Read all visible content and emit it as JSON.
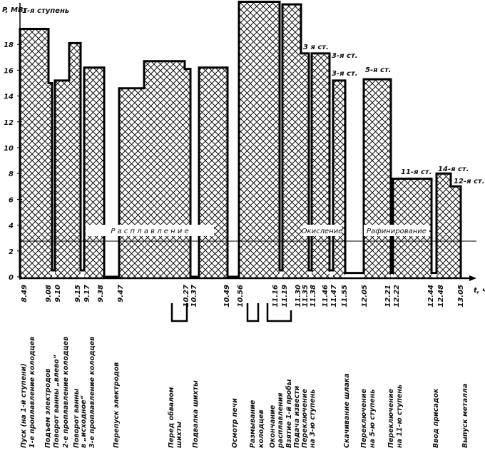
{
  "chart_data": {
    "type": "area",
    "title": "",
    "ylabel": "P, МВт",
    "xlabel": "t, ч",
    "ylim": [
      0,
      21.5
    ],
    "yticks": [
      "0",
      "2",
      "4",
      "6",
      "8",
      "10",
      "12",
      "14",
      "16",
      "18"
    ],
    "grid": false,
    "reference_line_mw": 2.8,
    "segments": [
      {
        "from": "8.49",
        "to": "9.08",
        "power": 19.2
      },
      {
        "from": "9.08",
        "to": "9.09",
        "power": 15.0
      },
      {
        "from": "9.09",
        "to": "9.10",
        "power": 0.5
      },
      {
        "from": "9.10",
        "to": "9.15",
        "power": 15.2
      },
      {
        "from": "9.15",
        "to": "9.17",
        "power": 18.1
      },
      {
        "from": "9.17",
        "to": "9.18",
        "power": 0.5
      },
      {
        "from": "9.18",
        "to": "9.38",
        "power": 16.2
      },
      {
        "from": "9.38",
        "to": "9.47",
        "power": 0
      },
      {
        "from": "9.47",
        "to": "10.02",
        "power": 14.6
      },
      {
        "from": "10.02",
        "to": "10.24",
        "power": 16.7
      },
      {
        "from": "10.24",
        "to": "10.27",
        "power": 16.1
      },
      {
        "from": "10.27",
        "to": "10.37",
        "power": 0
      },
      {
        "from": "10.37",
        "to": "10.49",
        "power": 16.2
      },
      {
        "from": "10.49",
        "to": "10.56",
        "power": 0
      },
      {
        "from": "10.56",
        "to": "11.16",
        "power": 21.3
      },
      {
        "from": "11.16",
        "to": "11.19",
        "power": 0.5
      },
      {
        "from": "11.19",
        "to": "11.30",
        "power": 21.1
      },
      {
        "from": "11.30",
        "to": "11.35",
        "power": 17.3
      },
      {
        "from": "11.35",
        "to": "11.38",
        "power": 0.5
      },
      {
        "from": "11.38",
        "to": "11.46",
        "power": 17.3
      },
      {
        "from": "11.46",
        "to": "11.47",
        "power": 0.5
      },
      {
        "from": "11.47",
        "to": "11.55",
        "power": 15.2
      },
      {
        "from": "11.55",
        "to": "12.05",
        "power": 0.3
      },
      {
        "from": "12.05",
        "to": "12.21",
        "power": 15.3
      },
      {
        "from": "12.21",
        "to": "12.22",
        "power": 0.3
      },
      {
        "from": "12.22",
        "to": "12.44",
        "power": 7.6
      },
      {
        "from": "12.44",
        "to": "12.48",
        "power": 0.3
      },
      {
        "from": "12.48",
        "to": "12.58",
        "power": 8.0
      },
      {
        "from": "12.58",
        "to": "13.05",
        "power": 7.0
      }
    ],
    "time_ticks": [
      "8.49",
      "9.08",
      "9.10",
      "9.15",
      "9.17",
      "9.38",
      "9.47",
      "10.27",
      "10.37",
      "10.49",
      "10.56",
      "11.16",
      "11.19",
      "11.30",
      "11.35",
      "11.38",
      "11.46",
      "11.47",
      "11.55",
      "12.05",
      "12.21",
      "12.22",
      "12.44",
      "12.48",
      "13.05"
    ],
    "step_annotations": [
      "1-я ступень",
      "3 я ст.",
      "3-я ст.",
      "3-я ст.",
      "5-я ст.",
      "11-я ст.",
      "14-я ст.",
      "12-я ст."
    ],
    "phases": [
      "Р а с п л а в л е н и е",
      "Окисление",
      "Рафинирование"
    ],
    "events": [
      "Пуск (на 1-й ступени)",
      "1-е проплавление колодцев",
      "Подъем электродов",
      "Поворот ванны „влево“",
      "2-е проплавление колодцев",
      "Поворот ванны",
      "в „исходное“",
      "3-е проплавление колодцев",
      "Перепуск электродов",
      "Перед обвалом",
      "шихты",
      "Подвалка шихты",
      "Осмотр печи",
      "Размывание",
      "колодцев",
      "Окончание",
      "расплавления",
      "Взятие 1-й пробы",
      "Подача извести",
      "Переключение",
      "на 3-ю ступень",
      "Скачивание шлака",
      "Переключение",
      "на 5-ю ступень",
      "Переключение",
      "на 11-ю ступень",
      "Ввод присадок",
      "Выпуск металла"
    ]
  }
}
